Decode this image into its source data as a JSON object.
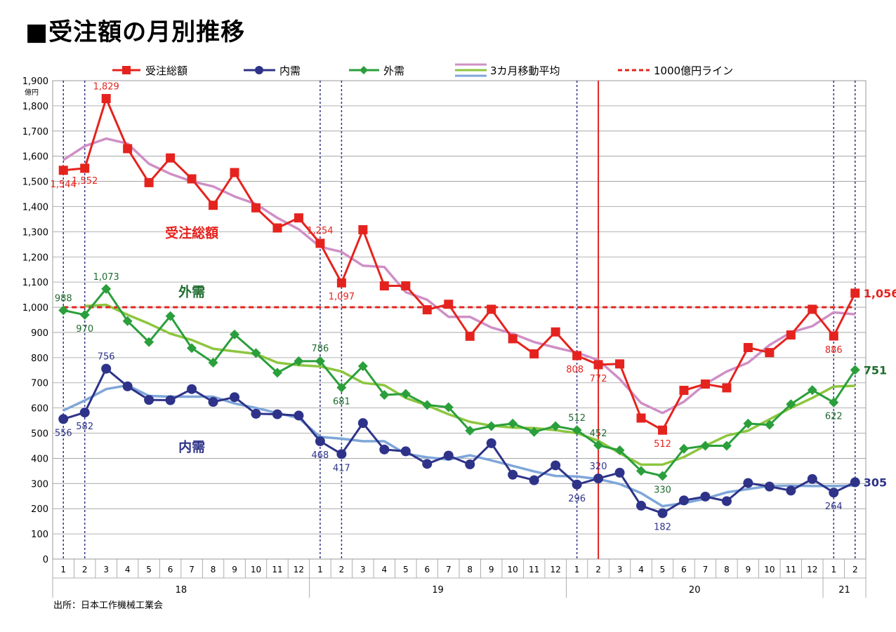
{
  "title": "■受注額の月別推移",
  "source": "出所：日本工作機械工業会",
  "chart_data": {
    "type": "line",
    "y_unit": "億円",
    "ylim": [
      0,
      1900
    ],
    "y_ticks": [
      0,
      100,
      200,
      300,
      400,
      500,
      600,
      700,
      800,
      900,
      1000,
      1100,
      1200,
      1300,
      1400,
      1500,
      1600,
      1700,
      1800,
      1900
    ],
    "months": [
      "1",
      "2",
      "3",
      "4",
      "5",
      "6",
      "7",
      "8",
      "9",
      "10",
      "11",
      "12",
      "1",
      "2",
      "3",
      "4",
      "5",
      "6",
      "7",
      "8",
      "9",
      "10",
      "11",
      "12",
      "1",
      "2",
      "3",
      "4",
      "5",
      "6",
      "7",
      "8",
      "9",
      "10",
      "11",
      "12",
      "1",
      "2"
    ],
    "years": [
      {
        "label": "18",
        "start": 0,
        "end": 11
      },
      {
        "label": "19",
        "start": 12,
        "end": 23
      },
      {
        "label": "20",
        "start": 24,
        "end": 35
      },
      {
        "label": "21",
        "start": 36,
        "end": 37
      }
    ],
    "legend": {
      "total": "受注総額",
      "domestic": "内需",
      "foreign": "外需",
      "ma": "3カ月移動平均",
      "line1000": "1000億円ライン"
    },
    "series_labels": {
      "total": "受注総額",
      "foreign": "外需",
      "domestic": "内需"
    },
    "series": [
      {
        "name": "受注総額",
        "key": "total",
        "color": "#e5231e",
        "marker": "square",
        "values": [
          1544,
          1552,
          1829,
          1630,
          1495,
          1593,
          1510,
          1405,
          1535,
          1395,
          1315,
          1355,
          1254,
          1097,
          1308,
          1085,
          1085,
          990,
          1012,
          885,
          992,
          875,
          815,
          902,
          808,
          772,
          775,
          560,
          512,
          670,
          695,
          680,
          840,
          820,
          890,
          992,
          886,
          1056
        ]
      },
      {
        "name": "外需",
        "key": "foreign",
        "color": "#2a9f3b",
        "marker": "diamond",
        "values": [
          988,
          970,
          1073,
          945,
          862,
          965,
          838,
          780,
          892,
          818,
          740,
          786,
          786,
          681,
          766,
          652,
          656,
          612,
          603,
          510,
          528,
          538,
          505,
          528,
          512,
          452,
          432,
          350,
          330,
          438,
          450,
          450,
          538,
          533,
          615,
          671,
          622,
          751
        ]
      },
      {
        "name": "内需",
        "key": "domestic",
        "color": "#2e3389",
        "marker": "circle",
        "values": [
          556,
          582,
          756,
          686,
          632,
          631,
          675,
          624,
          643,
          577,
          575,
          570,
          468,
          417,
          540,
          435,
          428,
          378,
          411,
          376,
          460,
          335,
          313,
          372,
          296,
          320,
          343,
          212,
          182,
          233,
          248,
          230,
          302,
          288,
          272,
          318,
          264,
          305
        ]
      }
    ],
    "moving_average": [
      {
        "name": "受注総額",
        "color": "#cf8fc6",
        "values": [
          1585,
          1640,
          1670,
          1650,
          1570,
          1530,
          1500,
          1480,
          1440,
          1410,
          1355,
          1310,
          1240,
          1220,
          1165,
          1160,
          1060,
          1030,
          962,
          962,
          920,
          895,
          862,
          840,
          820,
          790,
          715,
          620,
          580,
          625,
          695,
          745,
          780,
          850,
          900,
          925,
          980,
          972
        ]
      },
      {
        "name": "外需",
        "color": "#8dc63f",
        "values": [
          null,
          1005,
          1010,
          970,
          935,
          895,
          870,
          835,
          825,
          815,
          780,
          770,
          765,
          745,
          700,
          690,
          640,
          610,
          575,
          545,
          530,
          522,
          520,
          512,
          500,
          470,
          420,
          375,
          375,
          405,
          450,
          490,
          510,
          555,
          600,
          640,
          685,
          688
        ]
      },
      {
        "name": "内需",
        "color": "#7ea6d9",
        "values": [
          590,
          630,
          675,
          690,
          648,
          645,
          645,
          645,
          618,
          600,
          580,
          560,
          485,
          478,
          468,
          468,
          418,
          404,
          395,
          412,
          392,
          370,
          348,
          330,
          328,
          318,
          298,
          262,
          210,
          222,
          240,
          265,
          278,
          290,
          292,
          290,
          290,
          292
        ]
      }
    ],
    "data_labels": {
      "total": {
        "0": "1,544",
        "1": "1,552",
        "2": "1,829",
        "12": "1,254",
        "13": "1,097",
        "24": "808",
        "25": "772",
        "28": "512",
        "36": "886",
        "37": "1,056"
      },
      "foreign": {
        "0": "988",
        "1": "970",
        "2": "1,073",
        "12": "786",
        "13": "681",
        "24": "512",
        "25": "452",
        "28": "330",
        "36": "622",
        "37": "751"
      },
      "domestic": {
        "0": "556",
        "1": "582",
        "2": "756",
        "12": "468",
        "13": "417",
        "24": "296",
        "25": "320",
        "28": "182",
        "36": "264",
        "37": "305"
      }
    },
    "dashed_vertical_lines_after_index": [
      0,
      1,
      12,
      13,
      24,
      36,
      37
    ],
    "red_vertical_line_index": 25,
    "reference_line_value": 1000,
    "colors": {
      "total": "#e5231e",
      "foreign": "#2a9f3b",
      "domestic": "#2e3389",
      "ma_total": "#cf8fc6",
      "ma_foreign": "#8dc63f",
      "ma_domestic": "#7ea6d9",
      "ref": "#e5231e",
      "grid": "#000000",
      "vline": "#2e3389"
    }
  }
}
